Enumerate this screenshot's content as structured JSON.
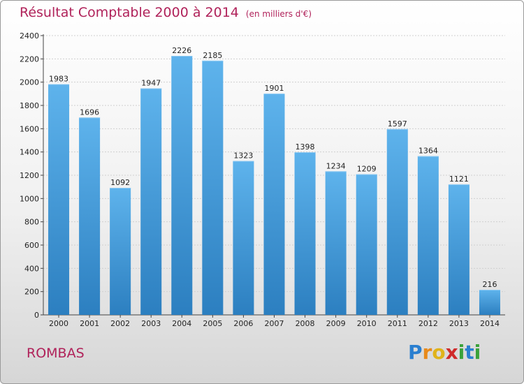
{
  "title": "Résultat Comptable 2000 à 2014",
  "unit": "(en milliers d'€)",
  "commune": "ROMBAS",
  "logo": {
    "letters": [
      {
        "char": "P",
        "color": "#2a7fd0"
      },
      {
        "char": "r",
        "color": "#e88a1a"
      },
      {
        "char": "o",
        "color": "#e0b31a"
      },
      {
        "char": "x",
        "color": "#cf2a2a"
      },
      {
        "char": "i",
        "color": "#3aa23a"
      },
      {
        "char": "t",
        "color": "#2a7fd0"
      },
      {
        "char": "i",
        "color": "#3aa23a"
      }
    ]
  },
  "colors": {
    "title": "#b0225a",
    "bar_top": "#5eb3ec",
    "bar_bottom": "#2c7fc0",
    "grid": "#cfcfcf"
  },
  "chart_data": {
    "type": "bar",
    "categories": [
      "2000",
      "2001",
      "2002",
      "2003",
      "2004",
      "2005",
      "2006",
      "2007",
      "2008",
      "2009",
      "2010",
      "2011",
      "2012",
      "2013",
      "2014"
    ],
    "values": [
      1983,
      1696,
      1092,
      1947,
      2226,
      2185,
      1323,
      1901,
      1398,
      1234,
      1209,
      1597,
      1364,
      1121,
      216
    ],
    "ylim": [
      0,
      2400
    ],
    "yticks": [
      0,
      200,
      400,
      600,
      800,
      1000,
      1200,
      1400,
      1600,
      1800,
      2000,
      2200,
      2400
    ],
    "grid": true
  }
}
